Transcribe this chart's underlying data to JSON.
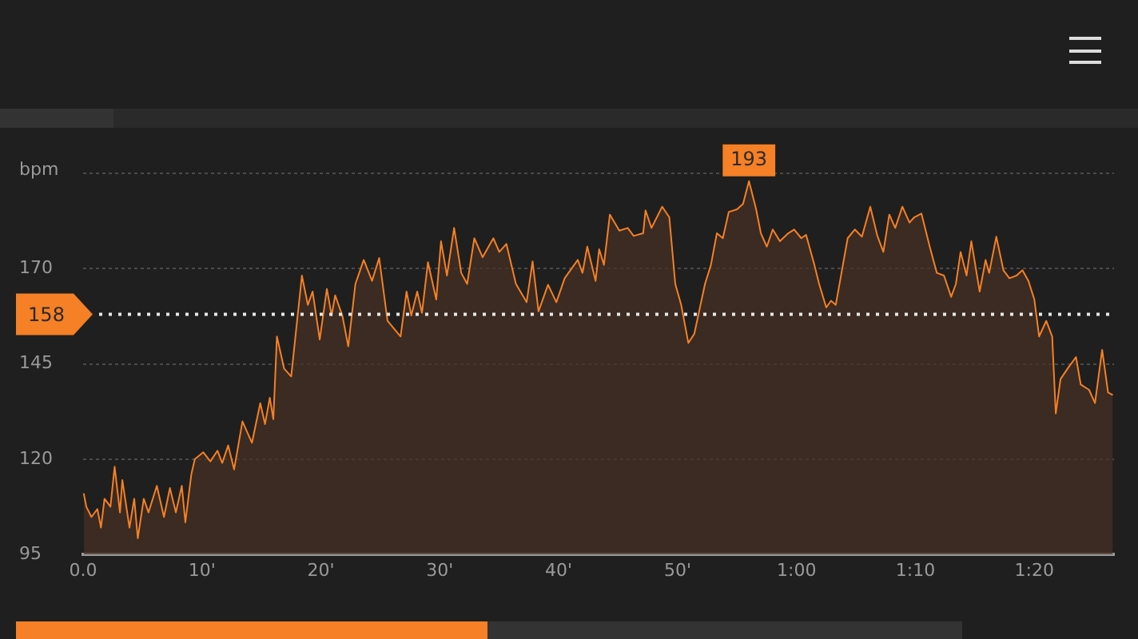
{
  "chart_data": {
    "type": "area",
    "ylabel": "bpm",
    "x": [
      0.05,
      0.27,
      0.7,
      1.2,
      1.5,
      1.8,
      2.3,
      2.65,
      3.1,
      3.3,
      3.9,
      4.3,
      4.6,
      5.1,
      5.5,
      6.2,
      6.8,
      7.3,
      7.8,
      8.3,
      8.6,
      9.1,
      9.4,
      10.1,
      10.7,
      11.3,
      11.7,
      12.2,
      12.7,
      13.4,
      14.2,
      14.9,
      15.3,
      15.7,
      16,
      16.3,
      16.9,
      17.5,
      18.4,
      18.9,
      19.3,
      19.9,
      20.5,
      20.9,
      21.2,
      21.8,
      22.3,
      22.9,
      23.6,
      24.3,
      24.9,
      25.6,
      26.7,
      27.2,
      27.6,
      28.1,
      28.5,
      29,
      29.7,
      30.1,
      30.6,
      31.2,
      31.8,
      32.3,
      32.9,
      33.6,
      34.5,
      35,
      35.6,
      36.4,
      37.3,
      37.8,
      38.3,
      39.1,
      39.8,
      40.5,
      41.6,
      42,
      42.4,
      43.1,
      43.4,
      43.8,
      44.3,
      45.1,
      45.8,
      46.3,
      47.1,
      47.3,
      47.8,
      48.7,
      49.3,
      49.8,
      50.3,
      50.9,
      51.4,
      52.3,
      52.8,
      53.3,
      53.8,
      54.3,
      55,
      55.5,
      56,
      56.6,
      57,
      57.5,
      58,
      58.6,
      59.3,
      59.8,
      60.4,
      60.8,
      61.5,
      61.9,
      62.5,
      62.9,
      63.3,
      63.7,
      64.3,
      64.9,
      65.5,
      66.2,
      66.8,
      67.3,
      67.8,
      68.3,
      68.9,
      69.5,
      69.9,
      70.5,
      71.2,
      71.8,
      72.4,
      73,
      73.4,
      73.8,
      74.3,
      74.7,
      75.4,
      75.9,
      76.2,
      76.8,
      77.4,
      77.9,
      78.5,
      79,
      79.5,
      80,
      80.4,
      81,
      81.5,
      81.8,
      82.2,
      82.8,
      83.5,
      83.9,
      84.6,
      85.1,
      85.7,
      86.2,
      86.6
    ],
    "values": [
      111,
      107.5,
      104.8,
      106.9,
      102,
      109.6,
      107.5,
      118,
      106,
      114.5,
      102,
      109.6,
      99.2,
      109.6,
      106,
      113,
      104.8,
      112.4,
      106,
      113,
      103.4,
      116,
      120,
      121.8,
      119.4,
      122.2,
      119,
      123.6,
      117.3,
      129.9,
      124.3,
      134.7,
      129.2,
      136.1,
      130.5,
      152.2,
      143.8,
      141.7,
      168.2,
      160.5,
      164,
      151.4,
      164.7,
      157.7,
      163,
      157.7,
      149.6,
      166,
      172.3,
      166.8,
      172.8,
      156.3,
      152.2,
      164,
      157.7,
      164,
      158.4,
      171.7,
      161.9,
      177.2,
      168.2,
      180.7,
      168.9,
      166,
      178,
      173,
      178,
      174.4,
      176.5,
      166,
      161.2,
      171.9,
      158.8,
      165.8,
      161.2,
      167.5,
      172.3,
      168.9,
      175.8,
      166.8,
      175.1,
      171,
      184.2,
      180,
      180.7,
      178.6,
      179.3,
      185.3,
      180.7,
      186.3,
      183.5,
      166,
      160.5,
      150.5,
      152.9,
      166,
      171,
      179.3,
      178,
      184.9,
      185.6,
      187,
      193,
      185.6,
      179.3,
      175.8,
      180.3,
      177.2,
      179.3,
      180.3,
      178,
      178.9,
      171,
      166,
      159.8,
      161.6,
      160.5,
      167.5,
      178,
      180.3,
      178.4,
      186.3,
      178.6,
      174.4,
      184.2,
      180.7,
      186.3,
      182.1,
      183.5,
      184.5,
      175.8,
      168.9,
      168.2,
      162.6,
      166,
      174.4,
      168.2,
      177.2,
      164,
      172.3,
      168.9,
      178.4,
      169.6,
      167.5,
      168.2,
      169.6,
      166.8,
      161.9,
      152.2,
      156.3,
      152.2,
      132,
      141,
      143.8,
      146.8,
      139.6,
      138.2,
      134.7,
      148.7,
      137.5,
      136.8
    ],
    "color": "#f58025",
    "xlim": [
      0,
      86.7
    ],
    "xticks": [
      {
        "value": 0,
        "label": "0.0"
      },
      {
        "value": 10,
        "label": "10'"
      },
      {
        "value": 20,
        "label": "20'"
      },
      {
        "value": 30,
        "label": "30'"
      },
      {
        "value": 40,
        "label": "40'"
      },
      {
        "value": 50,
        "label": "50'"
      },
      {
        "value": 60,
        "label": "1:00"
      },
      {
        "value": 70,
        "label": "1:10"
      },
      {
        "value": 80,
        "label": "1:20"
      }
    ],
    "ylim": [
      95,
      195
    ],
    "yticks": [
      95,
      120,
      145,
      170,
      {
        "value": 195,
        "label": null
      }
    ],
    "grid": "y",
    "legend": false,
    "marker": "none",
    "ref_lines": [
      {
        "axis": "y",
        "value": 158,
        "label": "158",
        "color": "#e8e8e8",
        "line_style": "dotted"
      }
    ],
    "annotations": [
      {
        "text": "193",
        "x": 56,
        "y": 193
      }
    ]
  }
}
